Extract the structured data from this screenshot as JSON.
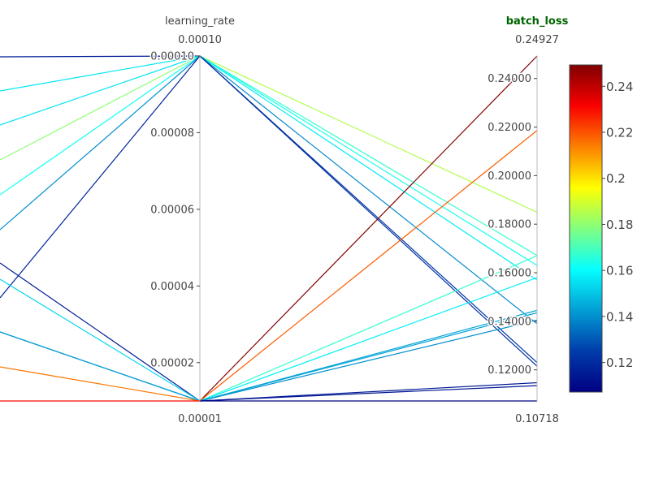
{
  "chart_data": {
    "type": "parallel_coordinates",
    "dimensions": [
      {
        "label": "learning_rate",
        "highlighted": false,
        "range": [
          1e-05,
          0.0001
        ],
        "range_labels": {
          "top": "0.00010",
          "bottom": "0.00001"
        },
        "ticks": [
          {
            "value": 0.0001,
            "label": "0.00010"
          },
          {
            "value": 8e-05,
            "label": "0.00008"
          },
          {
            "value": 6e-05,
            "label": "0.00006"
          },
          {
            "value": 4e-05,
            "label": "0.00004"
          },
          {
            "value": 2e-05,
            "label": "0.00002"
          }
        ]
      },
      {
        "label": "batch_loss",
        "highlighted": true,
        "range": [
          0.10718,
          0.24927
        ],
        "range_labels": {
          "top": "0.24927",
          "bottom": "0.10718"
        },
        "ticks": [
          {
            "value": 0.24,
            "label": "0.24000"
          },
          {
            "value": 0.22,
            "label": "0.22000"
          },
          {
            "value": 0.2,
            "label": "0.20000"
          },
          {
            "value": 0.18,
            "label": "0.18000"
          },
          {
            "value": 0.16,
            "label": "0.16000"
          },
          {
            "value": 0.14,
            "label": "0.14000"
          },
          {
            "value": 0.12,
            "label": "0.12000"
          }
        ]
      }
    ],
    "color_by": "batch_loss",
    "colorscale": "jet",
    "colorbar": {
      "range": [
        0.10718,
        0.24927
      ],
      "ticks": [
        {
          "value": 0.12,
          "label": "0.12"
        },
        {
          "value": 0.14,
          "label": "0.14"
        },
        {
          "value": 0.16,
          "label": "0.16"
        },
        {
          "value": 0.18,
          "label": "0.18"
        },
        {
          "value": 0.2,
          "label": "0.2"
        },
        {
          "value": 0.22,
          "label": "0.22"
        },
        {
          "value": 0.24,
          "label": "0.24"
        }
      ]
    },
    "lines": [
      {
        "learning_rate": 0.0001,
        "batch_loss": 0.1849
      },
      {
        "learning_rate": 0.0001,
        "batch_loss": 0.1671
      },
      {
        "learning_rate": 0.0001,
        "batch_loss": 0.163
      },
      {
        "learning_rate": 0.0001,
        "batch_loss": 0.157
      },
      {
        "learning_rate": 0.0001,
        "batch_loss": 0.139
      },
      {
        "learning_rate": 0.0001,
        "batch_loss": 0.123
      },
      {
        "learning_rate": 0.0001,
        "batch_loss": 0.1215
      },
      {
        "learning_rate": 1e-05,
        "batch_loss": 0.24927
      },
      {
        "learning_rate": 1e-05,
        "batch_loss": 0.2186
      },
      {
        "learning_rate": 1e-05,
        "batch_loss": 0.167
      },
      {
        "learning_rate": 1e-05,
        "batch_loss": 0.158
      },
      {
        "learning_rate": 1e-05,
        "batch_loss": 0.1445
      },
      {
        "learning_rate": 1e-05,
        "batch_loss": 0.1435
      },
      {
        "learning_rate": 1e-05,
        "batch_loss": 0.1405
      },
      {
        "learning_rate": 1e-05,
        "batch_loss": 0.1147
      },
      {
        "learning_rate": 1e-05,
        "batch_loss": 0.1135
      },
      {
        "learning_rate": 1e-05,
        "batch_loss": 0.10718
      }
    ],
    "incoming_segments": [
      {
        "to": 0.0001,
        "color_value": 0.116
      },
      {
        "to": 0.0001,
        "color_value": 0.156
      },
      {
        "to": 0.0001,
        "color_value": 0.156
      },
      {
        "to": 0.0001,
        "color_value": 0.18
      },
      {
        "to": 0.0001,
        "color_value": 0.162
      },
      {
        "to": 0.0001,
        "color_value": 0.14
      },
      {
        "to": 0.0001,
        "color_value": 0.118
      },
      {
        "to": 1e-05,
        "color_value": 0.116
      },
      {
        "to": 1e-05,
        "color_value": 0.153
      },
      {
        "to": 1e-05,
        "color_value": 0.12
      },
      {
        "to": 1e-05,
        "color_value": 0.145
      },
      {
        "to": 1e-05,
        "color_value": 0.215
      },
      {
        "to": 1e-05,
        "color_value": 0.23
      }
    ]
  }
}
